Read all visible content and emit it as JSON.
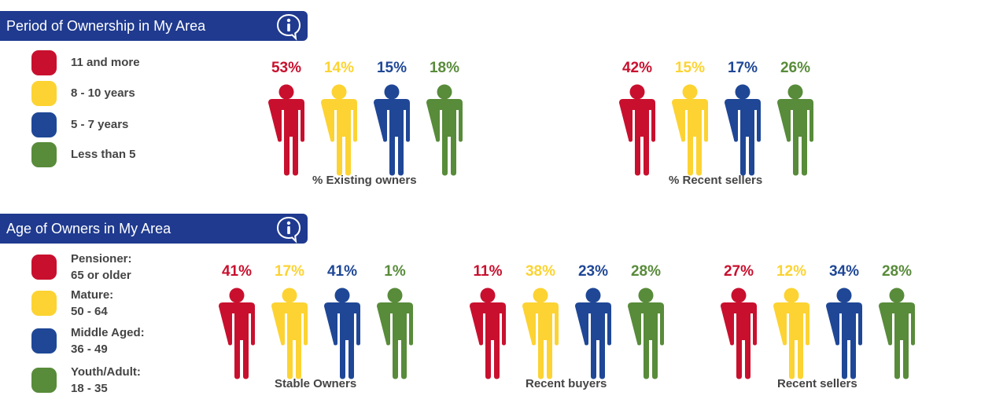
{
  "colors": {
    "header": "#1f3a8f",
    "red": "#c8102e",
    "yellow": "#fcd332",
    "blue": "#1f4796",
    "green": "#588b3a"
  },
  "sections": [
    {
      "title": "Period of Ownership in My Area",
      "info_icon": "info-speech-bubble-icon"
    },
    {
      "title": "Age of Owners in My Area",
      "info_icon": "info-speech-bubble-icon"
    }
  ],
  "legends": {
    "ownership": [
      {
        "label": "11 and more",
        "color": "red"
      },
      {
        "label": "8 - 10 years",
        "color": "yellow"
      },
      {
        "label": "5 - 7 years",
        "color": "blue"
      },
      {
        "label": "Less than 5",
        "color": "green"
      }
    ],
    "age": [
      {
        "line1": "Pensioner:",
        "line2": "65 or older",
        "color": "red"
      },
      {
        "line1": "Mature:",
        "line2": "50 - 64",
        "color": "yellow"
      },
      {
        "line1": "Middle Aged:",
        "line2": "36 - 49",
        "color": "blue"
      },
      {
        "line1": "Youth/Adult:",
        "line2": "18 - 35",
        "color": "green"
      }
    ]
  },
  "chart_data": [
    {
      "type": "bar",
      "title": "Period of Ownership in My Area",
      "categories": [
        "11 and more",
        "8 - 10 years",
        "5 - 7 years",
        "Less than 5"
      ],
      "series": [
        {
          "name": "% Existing owners",
          "values": [
            53,
            14,
            15,
            18
          ]
        },
        {
          "name": "% Recent sellers",
          "values": [
            42,
            15,
            17,
            26
          ]
        }
      ],
      "unit": "%"
    },
    {
      "type": "bar",
      "title": "Age of Owners in My Area",
      "categories": [
        "Pensioner: 65 or older",
        "Mature: 50 - 64",
        "Middle Aged: 36 - 49",
        "Youth/Adult: 18 - 35"
      ],
      "series": [
        {
          "name": "Stable Owners",
          "values": [
            41,
            17,
            41,
            1
          ]
        },
        {
          "name": "Recent buyers",
          "values": [
            11,
            38,
            23,
            28
          ]
        },
        {
          "name": "Recent sellers",
          "values": [
            27,
            12,
            34,
            28
          ]
        }
      ],
      "unit": "%"
    }
  ]
}
